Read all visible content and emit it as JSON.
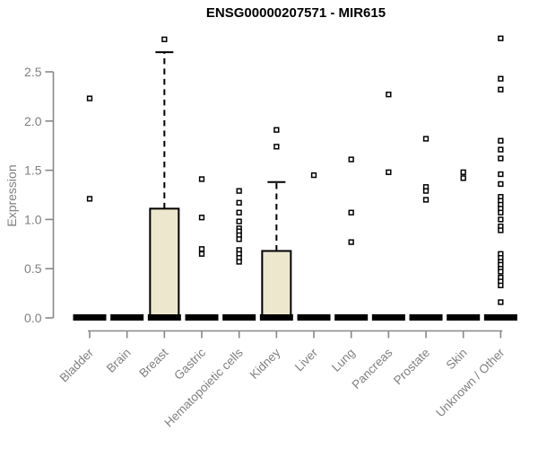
{
  "chart_data": {
    "type": "boxplot",
    "title": "ENSG00000207571 - MIR615",
    "ylabel": "Expression",
    "xlabel": "",
    "ylim": [
      0,
      2.9
    ],
    "yticks": [
      0.0,
      0.5,
      1.0,
      1.5,
      2.0,
      2.5
    ],
    "grid": false,
    "legend": "none",
    "categories": [
      "Bladder",
      "Brain",
      "Breast",
      "Gastric",
      "Hematopoietic cells",
      "Kidney",
      "Liver",
      "Lung",
      "Pancreas",
      "Prostate",
      "Skin",
      "Unknown / Other"
    ],
    "boxes": [
      {
        "category": "Bladder",
        "q1": 0,
        "median": 0,
        "q3": 0,
        "whisker_low": 0,
        "whisker_high": 0,
        "outliers": [
          2.23,
          1.21
        ]
      },
      {
        "category": "Brain",
        "q1": 0,
        "median": 0,
        "q3": 0,
        "whisker_low": 0,
        "whisker_high": 0,
        "outliers": []
      },
      {
        "category": "Breast",
        "q1": 0,
        "median": 0,
        "q3": 1.11,
        "whisker_low": 0,
        "whisker_high": 2.7,
        "outliers": [
          2.83
        ]
      },
      {
        "category": "Gastric",
        "q1": 0,
        "median": 0,
        "q3": 0,
        "whisker_low": 0,
        "whisker_high": 0,
        "outliers": [
          1.41,
          1.02,
          0.7,
          0.65
        ]
      },
      {
        "category": "Hematopoietic cells",
        "q1": 0,
        "median": 0,
        "q3": 0,
        "whisker_low": 0,
        "whisker_high": 0,
        "outliers": [
          1.29,
          1.17,
          1.07,
          0.98,
          0.91,
          0.88,
          0.84,
          0.8,
          0.69,
          0.65,
          0.61,
          0.57
        ]
      },
      {
        "category": "Kidney",
        "q1": 0,
        "median": 0,
        "q3": 0.68,
        "whisker_low": 0,
        "whisker_high": 1.38,
        "outliers": [
          1.91,
          1.74
        ]
      },
      {
        "category": "Liver",
        "q1": 0,
        "median": 0,
        "q3": 0,
        "whisker_low": 0,
        "whisker_high": 0,
        "outliers": [
          1.45
        ]
      },
      {
        "category": "Lung",
        "q1": 0,
        "median": 0,
        "q3": 0,
        "whisker_low": 0,
        "whisker_high": 0,
        "outliers": [
          1.61,
          1.07,
          0.77
        ]
      },
      {
        "category": "Pancreas",
        "q1": 0,
        "median": 0,
        "q3": 0,
        "whisker_low": 0,
        "whisker_high": 0,
        "outliers": [
          2.27,
          1.48
        ]
      },
      {
        "category": "Prostate",
        "q1": 0,
        "median": 0,
        "q3": 0,
        "whisker_low": 0,
        "whisker_high": 0,
        "outliers": [
          1.82,
          1.33,
          1.29,
          1.2
        ]
      },
      {
        "category": "Skin",
        "q1": 0,
        "median": 0,
        "q3": 0,
        "whisker_low": 0,
        "whisker_high": 0,
        "outliers": [
          1.48,
          1.42
        ]
      },
      {
        "category": "Unknown / Other",
        "q1": 0,
        "median": 0,
        "q3": 0,
        "whisker_low": 0,
        "whisker_high": 0,
        "outliers": [
          2.84,
          2.43,
          2.32,
          1.8,
          1.71,
          1.62,
          1.46,
          1.36,
          1.23,
          1.19,
          1.15,
          1.11,
          1.07,
          1.0,
          0.93,
          0.89,
          0.65,
          0.61,
          0.57,
          0.54,
          0.5,
          0.47,
          0.41,
          0.37,
          0.33,
          0.16
        ]
      }
    ],
    "colors": {
      "box_fill": "#EDE7CD",
      "box_border": "#000000",
      "median": "#000000",
      "outlier": "#000000",
      "axis": "#888888",
      "tick_label": "#808080",
      "title": "#000000",
      "background": "#ffffff"
    }
  }
}
